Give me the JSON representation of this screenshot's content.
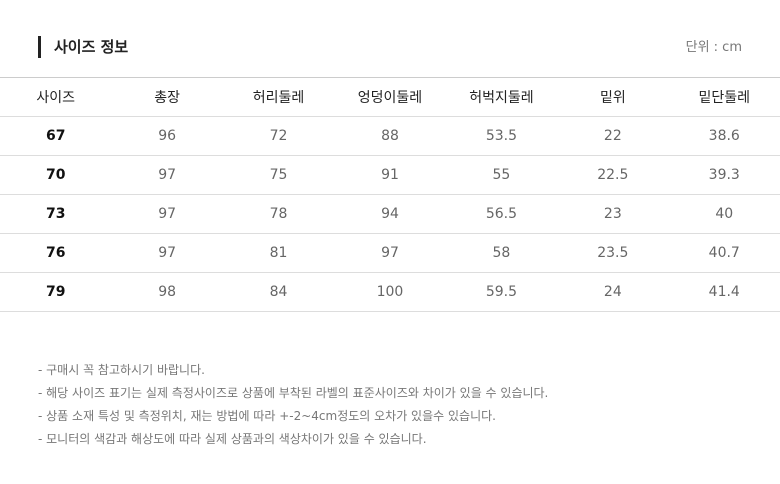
{
  "header": {
    "title": "사이즈 정보",
    "unit": "단위 : cm"
  },
  "table": {
    "columns": [
      "사이즈",
      "총장",
      "허리둘레",
      "엉덩이둘레",
      "허벅지둘레",
      "밑위",
      "밑단둘레"
    ],
    "rows": [
      [
        67,
        96,
        72,
        88,
        53.5,
        22,
        38.6
      ],
      [
        70,
        97,
        75,
        91,
        55,
        22.5,
        39.3
      ],
      [
        73,
        97,
        78,
        94,
        56.5,
        23,
        40
      ],
      [
        76,
        97,
        81,
        97,
        58,
        23.5,
        40.7
      ],
      [
        79,
        98,
        84,
        100,
        59.5,
        24,
        41.4
      ]
    ]
  },
  "notes": [
    "- 구매시 꼭 참고하시기 바랍니다.",
    "- 해당 사이즈 표기는 실제 측정사이즈로 상품에 부착된 라벨의 표준사이즈와 차이가 있을 수 있습니다.",
    "- 상품 소재 특성 및 측정위치, 재는 방법에 따라 +-2~4cm정도의 오차가 있을수 있습니다.",
    "- 모니터의 색감과 해상도에 따라 실제 상품과의 색상차이가 있을 수 있습니다."
  ]
}
